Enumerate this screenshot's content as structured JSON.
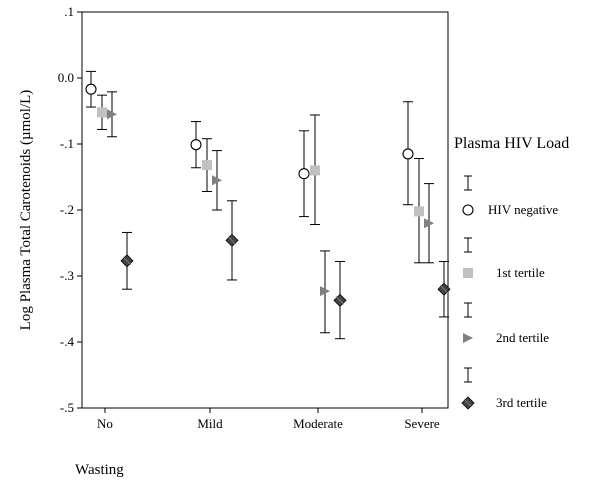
{
  "chart_data": {
    "type": "scatter",
    "categories": [
      "No",
      "Mild",
      "Moderate",
      "Severe"
    ],
    "ylabel": "Log Plasma Total Carotenoids (µmol/L)",
    "xlabel": "Wasting",
    "ylim": [
      -0.5,
      0.1
    ],
    "yticks": [
      0.1,
      0.0,
      -0.1,
      -0.2,
      -0.3,
      -0.4,
      -0.5
    ],
    "yticklabels": [
      ".1",
      "0.0",
      "-.1",
      "-.2",
      "-.3",
      "-.4",
      "-.5"
    ],
    "grid": false,
    "legend_title": "Plasma HIV Load",
    "legend_placement": "right",
    "series": [
      {
        "name": "HIV negative",
        "marker": "open-circle",
        "color": "#000000",
        "values": [
          -0.017,
          -0.101,
          -0.145,
          -0.115
        ],
        "lower": [
          -0.044,
          -0.136,
          -0.21,
          -0.192
        ],
        "upper": [
          0.01,
          -0.066,
          -0.08,
          -0.036
        ]
      },
      {
        "name": "1st tertile",
        "marker": "square",
        "color": "#c0c0c0",
        "values": [
          -0.052,
          -0.132,
          -0.14,
          -0.202
        ],
        "lower": [
          -0.078,
          -0.172,
          -0.222,
          -0.28
        ],
        "upper": [
          -0.026,
          -0.092,
          -0.056,
          -0.122
        ]
      },
      {
        "name": "2nd tertile",
        "marker": "triangle-right",
        "color": "#808080",
        "values": [
          -0.055,
          -0.155,
          -0.323,
          -0.22
        ],
        "lower": [
          -0.089,
          -0.2,
          -0.386,
          -0.28
        ],
        "upper": [
          -0.021,
          -0.11,
          -0.262,
          -0.16
        ]
      },
      {
        "name": "3rd tertile",
        "marker": "diamond",
        "color": "#444444",
        "values": [
          -0.277,
          -0.246,
          -0.337,
          -0.32
        ],
        "lower": [
          -0.32,
          -0.306,
          -0.395,
          -0.362
        ],
        "upper": [
          -0.234,
          -0.186,
          -0.278,
          -0.278
        ]
      }
    ]
  }
}
